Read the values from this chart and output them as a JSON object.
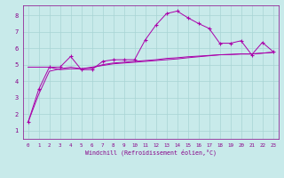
{
  "xlabel": "Windchill (Refroidissement éolien,°C)",
  "background_color": "#c8eaea",
  "grid_color": "#a8d4d4",
  "line_color": "#aa00aa",
  "xlim": [
    -0.5,
    23.5
  ],
  "ylim": [
    0.5,
    8.6
  ],
  "yticks": [
    1,
    2,
    3,
    4,
    5,
    6,
    7,
    8
  ],
  "xticks": [
    0,
    1,
    2,
    3,
    4,
    5,
    6,
    7,
    8,
    9,
    10,
    11,
    12,
    13,
    14,
    15,
    16,
    17,
    18,
    19,
    20,
    21,
    22,
    23
  ],
  "hours": [
    0,
    1,
    2,
    3,
    4,
    5,
    6,
    7,
    8,
    9,
    10,
    11,
    12,
    13,
    14,
    15,
    16,
    17,
    18,
    19,
    20,
    21,
    22,
    23
  ],
  "line_jagged": [
    1.5,
    3.5,
    4.85,
    4.85,
    5.5,
    4.7,
    4.7,
    5.2,
    5.3,
    5.3,
    5.3,
    6.5,
    7.4,
    8.1,
    8.25,
    7.85,
    7.5,
    7.2,
    6.3,
    6.3,
    6.45,
    5.6,
    6.35,
    5.8
  ],
  "line_smooth1": [
    4.85,
    4.85,
    4.85,
    4.7,
    4.75,
    4.75,
    4.85,
    4.95,
    5.05,
    5.1,
    5.15,
    5.2,
    5.25,
    5.3,
    5.35,
    5.42,
    5.48,
    5.54,
    5.6,
    5.62,
    5.65,
    5.65,
    5.7,
    5.75
  ],
  "line_smooth2": [
    1.5,
    3.2,
    4.6,
    4.75,
    4.85,
    4.75,
    4.8,
    5.0,
    5.1,
    5.15,
    5.2,
    5.25,
    5.3,
    5.38,
    5.42,
    5.48,
    5.52,
    5.56,
    5.6,
    5.62,
    5.65,
    5.65,
    5.7,
    5.75
  ]
}
